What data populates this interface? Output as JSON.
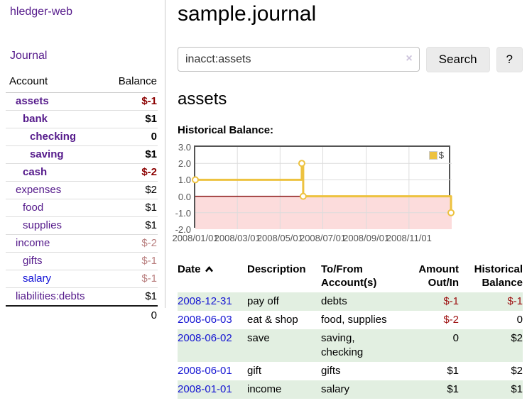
{
  "app": {
    "title": "hledger-web"
  },
  "sidebar": {
    "journal_label": "Journal",
    "accounts": {
      "header_account": "Account",
      "header_balance": "Balance",
      "rows": [
        {
          "name": "assets",
          "balance": "$-1"
        },
        {
          "name": "bank",
          "balance": "$1"
        },
        {
          "name": "checking",
          "balance": "0"
        },
        {
          "name": "saving",
          "balance": "$1"
        },
        {
          "name": "cash",
          "balance": "$-2"
        },
        {
          "name": "expenses",
          "balance": "$2"
        },
        {
          "name": "food",
          "balance": "$1"
        },
        {
          "name": "supplies",
          "balance": "$1"
        },
        {
          "name": "income",
          "balance": "$-2"
        },
        {
          "name": "gifts",
          "balance": "$-1"
        },
        {
          "name": "salary",
          "balance": "$-1"
        },
        {
          "name": "liabilities:debts",
          "balance": "$1"
        }
      ],
      "total": "0"
    }
  },
  "main": {
    "title": "sample.journal",
    "search": {
      "value": "inacct:assets",
      "clear_icon": "×",
      "button_label": "Search",
      "help_label": "?"
    },
    "account_heading": "assets",
    "chart_heading": "Historical Balance:"
  },
  "chart_data": {
    "type": "line",
    "step": true,
    "title": "Historical Balance of assets",
    "series": [
      {
        "name": "$",
        "points": [
          {
            "date": "2008-01-01",
            "day": 0,
            "value": 1
          },
          {
            "date": "2008-06-01",
            "day": 152,
            "value": 2
          },
          {
            "date": "2008-06-03",
            "day": 154,
            "value": 0
          },
          {
            "date": "2008-12-31",
            "day": 365,
            "value": -1
          }
        ]
      }
    ],
    "ylim": [
      -2,
      3
    ],
    "x_max_day": 366,
    "yticks": [
      {
        "label": "3.0",
        "value": 3
      },
      {
        "label": "2.0",
        "value": 2
      },
      {
        "label": "1.0",
        "value": 1
      },
      {
        "label": "0.0",
        "value": 0
      },
      {
        "label": "-1.0",
        "value": -1
      },
      {
        "label": "-2.0",
        "value": -2
      }
    ],
    "xticks": [
      {
        "label": "2008/01/01",
        "day": 0
      },
      {
        "label": "2008/03/01",
        "day": 60
      },
      {
        "label": "2008/05/01",
        "day": 121
      },
      {
        "label": "2008/07/01",
        "day": 182
      },
      {
        "label": "2008/09/01",
        "day": 244
      },
      {
        "label": "2008/11/01",
        "day": 305
      }
    ],
    "legend_position": "top-right",
    "grid": true,
    "colors": {
      "series": "#edc240",
      "marker_fill": "#ffffff",
      "negative_region": "#fcdcdc",
      "zero_line": "#8b1a1a",
      "grid": "#dcdcdc",
      "border": "#545454",
      "tick_text": "#545454"
    }
  },
  "register": {
    "headers": [
      {
        "l1": "Date",
        "l2": ""
      },
      {
        "l1": "Description",
        "l2": ""
      },
      {
        "l1": "To/From",
        "l2": "Account(s)"
      },
      {
        "l1": "Amount",
        "l2": "Out/In"
      },
      {
        "l1": "Historical",
        "l2": "Balance"
      }
    ],
    "rows": [
      {
        "date": "2008-12-31",
        "description": "pay off",
        "accounts": "debts",
        "amount": "$-1",
        "balance": "$-1"
      },
      {
        "date": "2008-06-03",
        "description": "eat & shop",
        "accounts": "food, supplies",
        "amount": "$-2",
        "balance": "0"
      },
      {
        "date": "2008-06-02",
        "description": "save",
        "accounts": "saving, checking",
        "amount": "0",
        "balance": "$2"
      },
      {
        "date": "2008-06-01",
        "description": "gift",
        "accounts": "gifts",
        "amount": "$1",
        "balance": "$2"
      },
      {
        "date": "2008-01-01",
        "description": "income",
        "accounts": "salary",
        "amount": "$1",
        "balance": "$1"
      }
    ]
  },
  "colors": {
    "link_purple": "#551a8b",
    "link_blue": "#1414d2",
    "negative_strong": "#8b0000",
    "negative_table": "#9d1010",
    "negative_soft": "#b97f7f",
    "row_green": "#e2efe1",
    "sidebar_divider": "#cccccc"
  }
}
